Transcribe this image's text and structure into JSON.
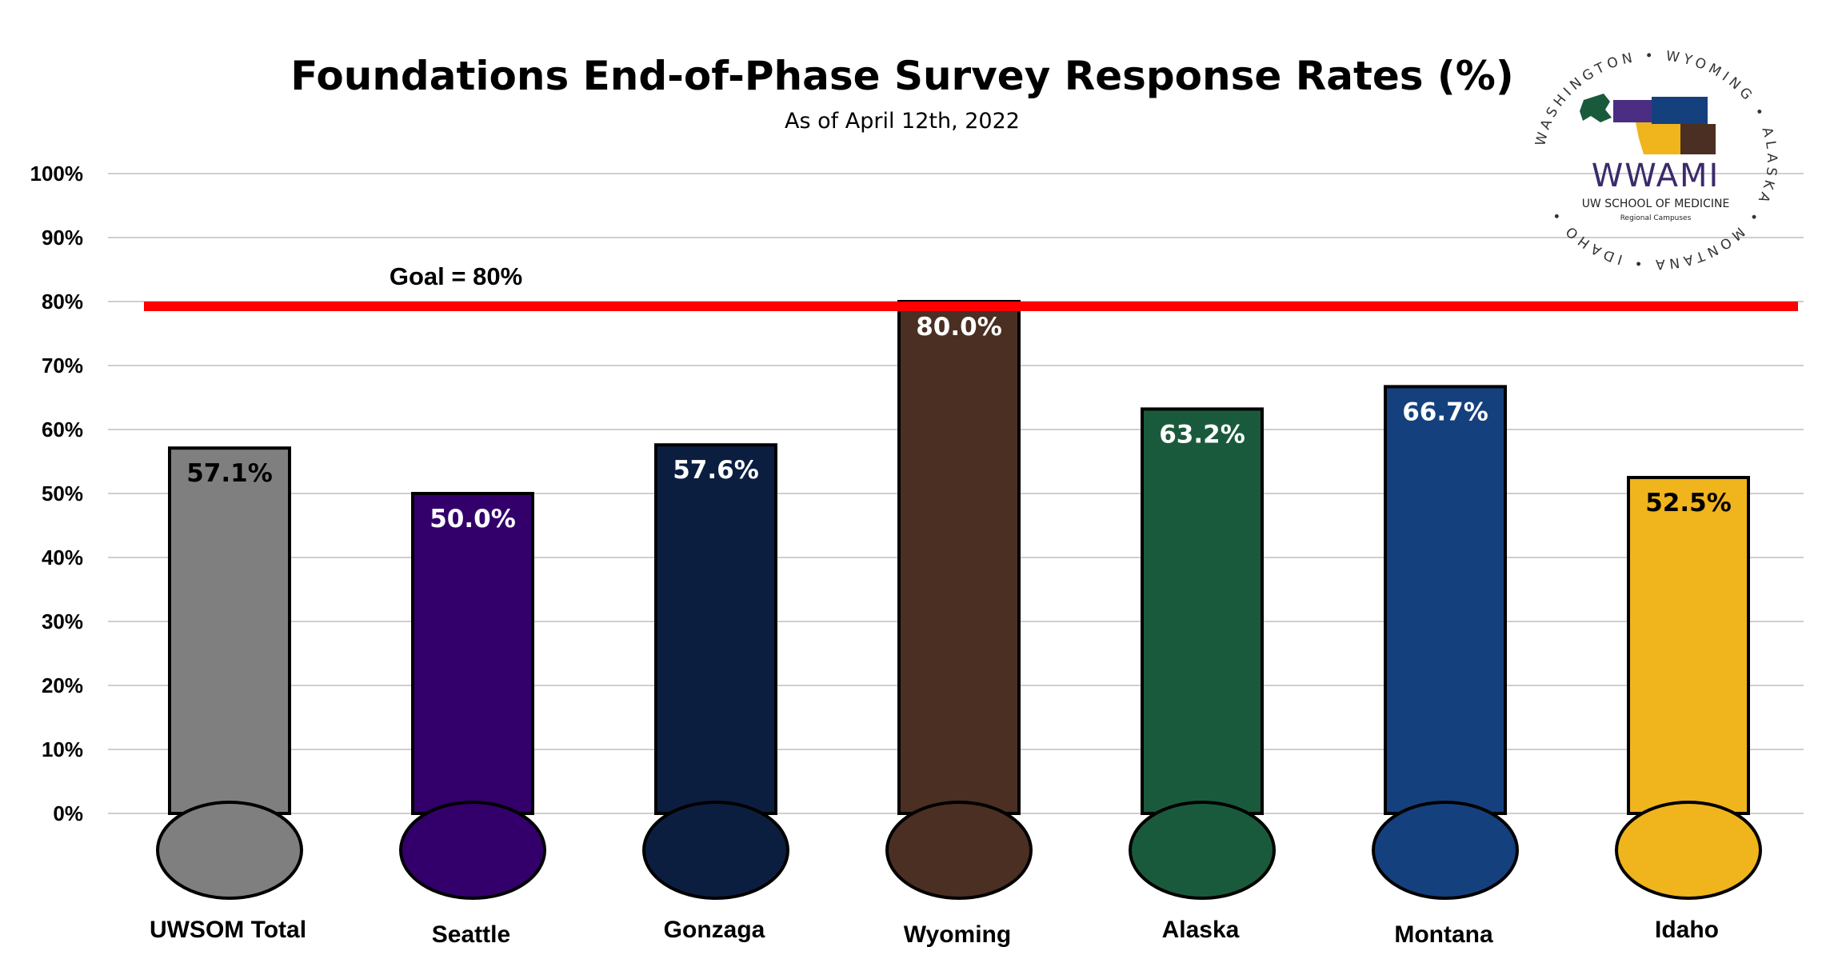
{
  "chart_data": {
    "type": "bar",
    "title": "Foundations End-of-Phase Survey Response Rates (%)",
    "subtitle": "As of April 12th, 2022",
    "categories": [
      "UWSOM Total",
      "Seattle",
      "Gonzaga",
      "Wyoming",
      "Alaska",
      "Montana",
      "Idaho"
    ],
    "values": [
      57.1,
      50.0,
      57.6,
      80.0,
      63.2,
      66.7,
      52.5
    ],
    "data_labels": [
      "57.1%",
      "50.0%",
      "57.6%",
      "80.0%",
      "63.2%",
      "66.7%",
      "52.5%"
    ],
    "colors": [
      "#7f7f7f",
      "#33006b",
      "#0c1e40",
      "#4a2f22",
      "#1a5a3c",
      "#15407e",
      "#f0b41c"
    ],
    "label_colors": [
      "#000000",
      "#ffffff",
      "#ffffff",
      "#ffffff",
      "#ffffff",
      "#ffffff",
      "#000000"
    ],
    "ylim": [
      0,
      100
    ],
    "yticks": [
      "0%",
      "10%",
      "20%",
      "30%",
      "40%",
      "50%",
      "60%",
      "70%",
      "80%",
      "90%",
      "100%"
    ],
    "goal": {
      "value": 80,
      "label": "Goal = 80%",
      "color": "#ff0000"
    },
    "grid": true,
    "xlabel": "",
    "ylabel": ""
  },
  "logo": {
    "name": "WWAMI",
    "line1": "UW SCHOOL OF MEDICINE",
    "line2": "Regional Campuses",
    "ring_text": "WASHINGTON • WYOMING • ALASKA • MONTANA • IDAHO •",
    "colors": [
      "#4b2e83",
      "#1a5a3c",
      "#f0b41c",
      "#15407e",
      "#4a2f22"
    ]
  }
}
